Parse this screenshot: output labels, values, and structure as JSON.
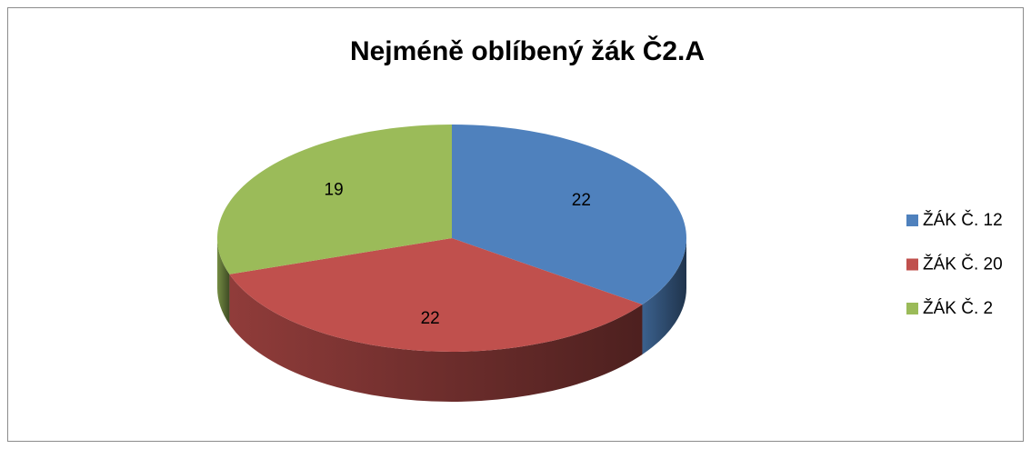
{
  "chart_data": {
    "type": "pie",
    "title": "Nejméně oblíbený žák Č2.A",
    "categories": [
      "ŽÁK Č. 12",
      "ŽÁK Č. 20",
      "ŽÁK Č. 2"
    ],
    "values": [
      22,
      22,
      19
    ],
    "colors": [
      "#4f81bd",
      "#c0504d",
      "#9bbb59"
    ],
    "legend": "right"
  }
}
